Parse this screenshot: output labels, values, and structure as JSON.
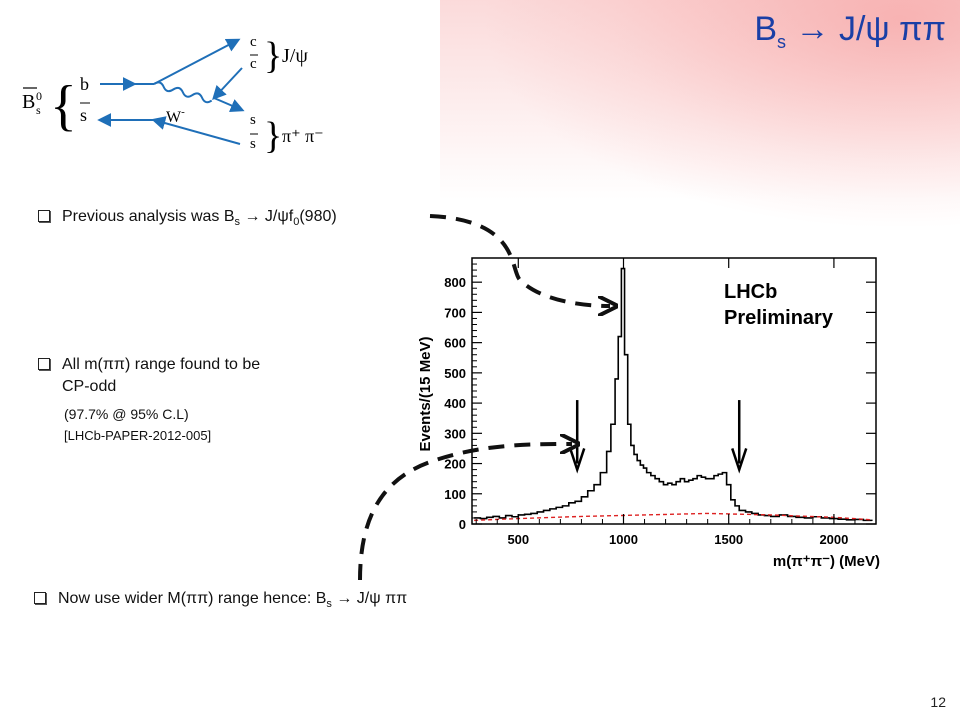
{
  "slide": {
    "title_main": "B",
    "title_sub": "s",
    "title_rest": "  J/ψ ππ",
    "page_number": "12"
  },
  "diagram": {
    "meson_label": "B",
    "meson_sup": "0",
    "meson_sub": "s",
    "quark_b": "b",
    "quark_sbar": "s",
    "quark_c": "c",
    "quark_cbar": "c",
    "quark_s": "s",
    "quark_sbar2": "s",
    "boson": "W",
    "boson_sup": "-",
    "product_jpsi": "J/ψ",
    "product_pipi": "π⁺ π⁻"
  },
  "bullets": {
    "b1_pre": "Previous analysis was B",
    "b1_sub": "s",
    "b1_mid": "  J/ψf",
    "b1_sub2": "0",
    "b1_post": "(980)",
    "b2_line1": "All m(ππ) range found to be",
    "b2_line2": "CP-odd",
    "b2_note1": "(97.7% @ 95% C.L)",
    "b2_note2": "[LHCb-PAPER-2012-005]",
    "b3_pre": "Now use wider M(ππ) range hence: B",
    "b3_sub": "s",
    "b3_post": "  J/ψ ππ"
  },
  "chart_data": {
    "type": "line",
    "title": "",
    "annotation": [
      "LHCb",
      "Preliminary"
    ],
    "xlabel": "m(π⁺π⁻) (MeV)",
    "ylabel": "Events/(15 MeV)",
    "xlim": [
      280,
      2200
    ],
    "ylim": [
      0,
      880
    ],
    "x_ticks": [
      500,
      1000,
      1500,
      2000
    ],
    "y_ticks": [
      0,
      100,
      200,
      300,
      400,
      500,
      600,
      700,
      800
    ],
    "markers": [
      780,
      1550
    ],
    "series": [
      {
        "style": "solid-black-histogram",
        "x": [
          290,
          320,
          350,
          380,
          410,
          440,
          470,
          500,
          530,
          560,
          590,
          620,
          650,
          680,
          710,
          740,
          770,
          800,
          830,
          860,
          890,
          920,
          940,
          960,
          975,
          990,
          1005,
          1020,
          1035,
          1050,
          1065,
          1080,
          1095,
          1110,
          1130,
          1150,
          1170,
          1190,
          1210,
          1230,
          1250,
          1270,
          1290,
          1310,
          1330,
          1350,
          1370,
          1390,
          1410,
          1430,
          1450,
          1470,
          1490,
          1510,
          1530,
          1550,
          1580,
          1610,
          1640,
          1670,
          1700,
          1740,
          1780,
          1820,
          1860,
          1900,
          1940,
          1980,
          2020,
          2060,
          2100,
          2140,
          2180
        ],
        "y": [
          20,
          18,
          22,
          25,
          20,
          28,
          24,
          30,
          32,
          35,
          40,
          45,
          50,
          55,
          60,
          70,
          75,
          90,
          110,
          130,
          170,
          240,
          330,
          480,
          620,
          845,
          560,
          330,
          260,
          230,
          210,
          195,
          185,
          170,
          160,
          150,
          140,
          130,
          135,
          130,
          140,
          150,
          140,
          145,
          150,
          160,
          155,
          150,
          150,
          160,
          165,
          170,
          130,
          80,
          60,
          45,
          40,
          35,
          30,
          28,
          25,
          30,
          25,
          22,
          20,
          24,
          20,
          18,
          16,
          14,
          15,
          12,
          10
        ]
      },
      {
        "style": "dashed-red-background",
        "x": [
          290,
          500,
          800,
          1100,
          1400,
          1700,
          2000,
          2180
        ],
        "y": [
          12,
          18,
          25,
          30,
          35,
          30,
          22,
          14
        ]
      }
    ]
  }
}
